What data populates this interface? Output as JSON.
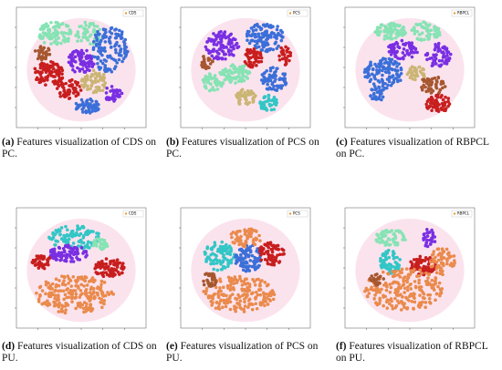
{
  "panels": [
    {
      "label": "(a)",
      "caption": "Features visualization of CDS on PC.",
      "legend": "CDS"
    },
    {
      "label": "(b)",
      "caption": "Features visualization of PCS on PC.",
      "legend": "PCS"
    },
    {
      "label": "(c)",
      "caption": "Features visualization of RBPCL on PC.",
      "legend": "RBPCL"
    },
    {
      "label": "(d)",
      "caption": "Features visualization of CDS on PU.",
      "legend": "CDS"
    },
    {
      "label": "(e)",
      "caption": "Features visualization of PCS on PU.",
      "legend": "PCS"
    },
    {
      "label": "(f)",
      "caption": "Features visualization of RBPCL on PU.",
      "legend": "RBPCL"
    }
  ]
}
